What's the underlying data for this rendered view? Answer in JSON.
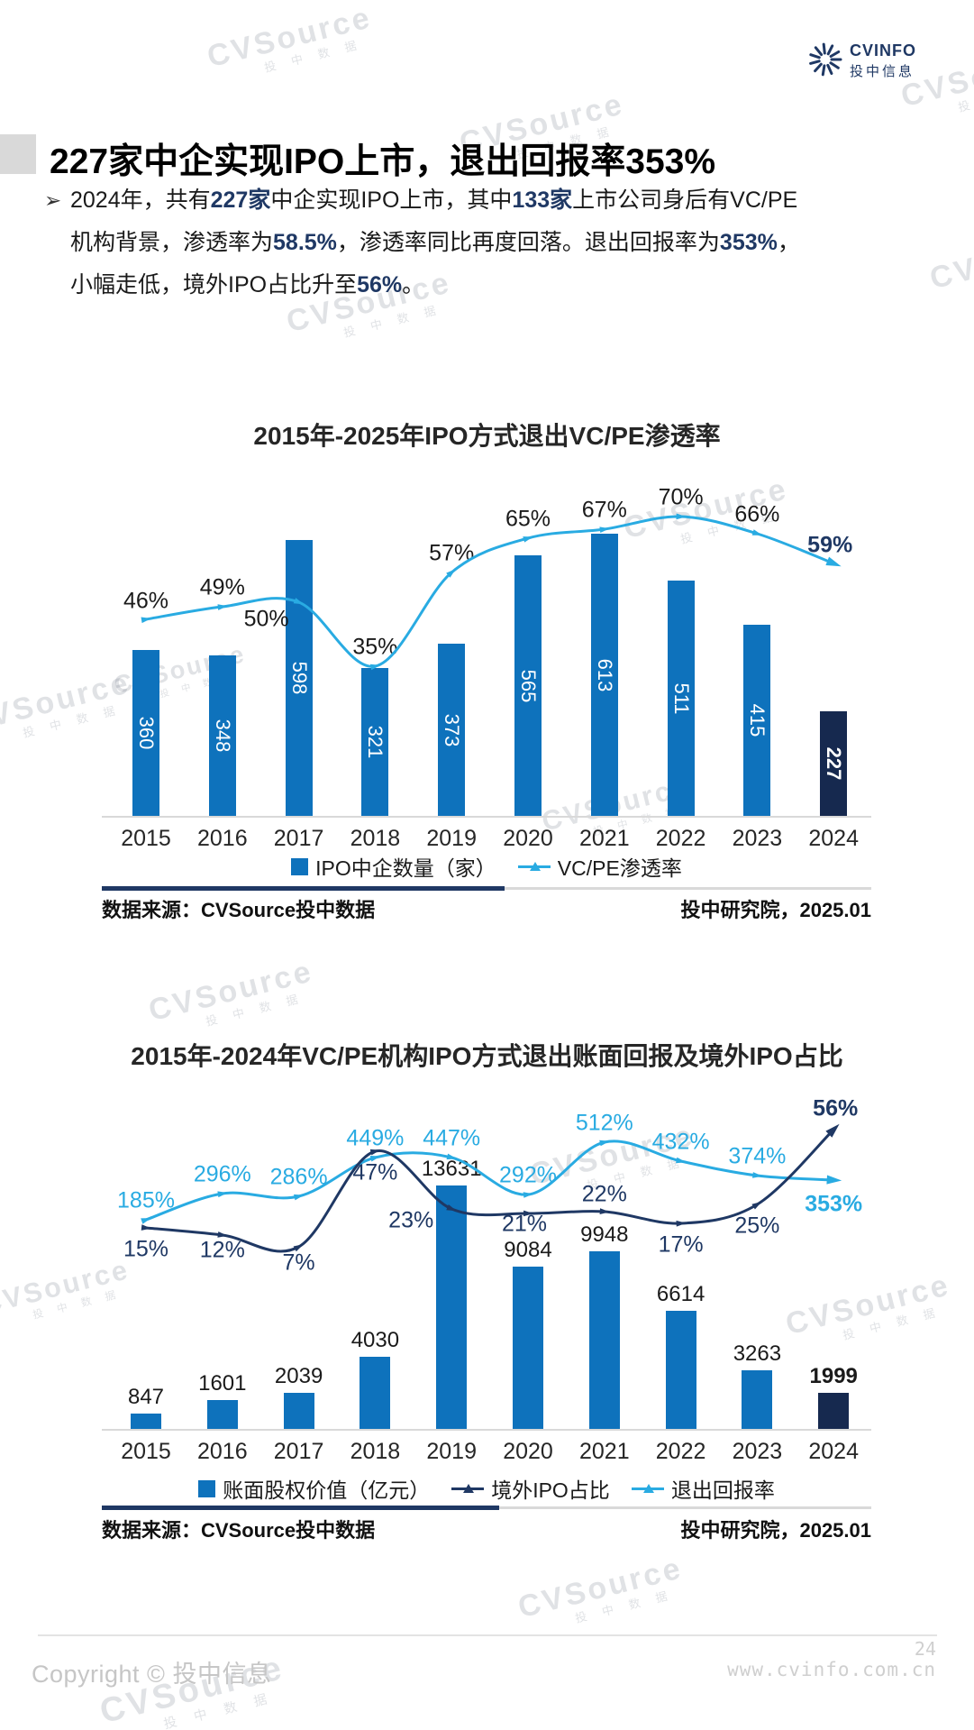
{
  "header": {
    "brand": "CVINFO",
    "brand_sub": "投中信息"
  },
  "watermark": {
    "word": "CVSource",
    "sub": "投 中 数 据"
  },
  "title_block": {
    "title": "227家中企实现IPO上市，退出回报率353%"
  },
  "summary": {
    "bullet": "➢",
    "lines": [
      [
        {
          "t": "2024年，共有",
          "b": false
        },
        {
          "t": "227家",
          "b": true
        },
        {
          "t": "中企实现IPO上市，其中",
          "b": false
        },
        {
          "t": "133家",
          "b": true
        },
        {
          "t": "上市公司身后有VC/PE",
          "b": false
        }
      ],
      [
        {
          "t": "机构背景，渗透率为",
          "b": false
        },
        {
          "t": "58.5%",
          "b": true
        },
        {
          "t": "，渗透率同比再度回落。退出回报率为",
          "b": false
        },
        {
          "t": "353%",
          "b": true
        },
        {
          "t": "，",
          "b": false
        }
      ],
      [
        {
          "t": "小幅走低，境外IPO占比升至",
          "b": false
        },
        {
          "t": "56%",
          "b": true
        },
        {
          "t": "。",
          "b": false
        }
      ]
    ]
  },
  "chart_data": [
    {
      "type": "bar+line",
      "title": "2015年-2025年IPO方式退出VC/PE渗透率",
      "categories": [
        "2015",
        "2016",
        "2017",
        "2018",
        "2019",
        "2020",
        "2021",
        "2022",
        "2023",
        "2024"
      ],
      "series": [
        {
          "name": "IPO中企数量（家）",
          "type": "bar",
          "values": [
            360,
            348,
            598,
            321,
            373,
            565,
            613,
            511,
            415,
            227
          ],
          "color": "#0E72BC",
          "last_bar_color": "#16294F"
        },
        {
          "name": "VC/PE渗透率",
          "type": "line",
          "unit": "%",
          "values": [
            46,
            49,
            50,
            35,
            57,
            65,
            67,
            70,
            66,
            59
          ],
          "labels": [
            "46%",
            "49%",
            "50%",
            "35%",
            "57%",
            "65%",
            "67%",
            "70%",
            "66%",
            "59%"
          ],
          "color": "#29ABE2"
        }
      ],
      "ylim_bar": [
        0,
        950
      ],
      "ylim_line_pct": [
        0,
        100
      ],
      "legend_position": "bottom",
      "grid": false,
      "source_left": "数据来源：CVSource投中数据",
      "source_right": "投中研究院，2025.01"
    },
    {
      "type": "bar+line",
      "title": "2015年-2024年VC/PE机构IPO方式退出账面回报及境外IPO占比",
      "categories": [
        "2015",
        "2016",
        "2017",
        "2018",
        "2019",
        "2020",
        "2021",
        "2022",
        "2023",
        "2024"
      ],
      "series": [
        {
          "name": "账面股权价值（亿元）",
          "type": "bar",
          "values": [
            847,
            1601,
            2039,
            4030,
            13631,
            9084,
            9948,
            6614,
            3263,
            1999
          ],
          "labels": [
            "847",
            "1601",
            "2039",
            "4030",
            "13631",
            "9084",
            "9948",
            "6614",
            "3263",
            "1999"
          ],
          "color": "#0E72BC",
          "last_bar_color": "#16294F"
        },
        {
          "name": "境外IPO占比",
          "type": "line",
          "unit": "%",
          "values": [
            15,
            12,
            7,
            47,
            23,
            21,
            22,
            17,
            25,
            56
          ],
          "labels": [
            "15%",
            "12%",
            "7%",
            "47%",
            "23%",
            "21%",
            "22%",
            "17%",
            "25%",
            "56%"
          ],
          "color": "#1F3864"
        },
        {
          "name": "退出回报率",
          "type": "line",
          "unit": "%",
          "values": [
            185,
            296,
            286,
            449,
            447,
            292,
            512,
            432,
            374,
            353
          ],
          "labels": [
            "185%",
            "296%",
            "286%",
            "449%",
            "447%",
            "292%",
            "512%",
            "432%",
            "374%",
            "353%"
          ],
          "color": "#29ABE2"
        }
      ],
      "ylim_bar": [
        0,
        14000
      ],
      "ylim_line_pct": [
        0,
        700
      ],
      "legend_position": "bottom",
      "grid": false,
      "source_left": "数据来源：CVSource投中数据",
      "source_right": "投中研究院，2025.01"
    }
  ],
  "footer": {
    "copyright": "Copyright © 投中信息",
    "page_number": "24",
    "website": "www.cvinfo.com.cn"
  },
  "colors": {
    "accent_navy": "#1F3864",
    "bar_blue": "#0E72BC",
    "bar_dark": "#16294F",
    "line_lightblue": "#29ABE2",
    "divider_gray": "#D9D9D9",
    "watermark_gray": "#D5D7DA",
    "footer_gray": "#C6C6C6"
  }
}
